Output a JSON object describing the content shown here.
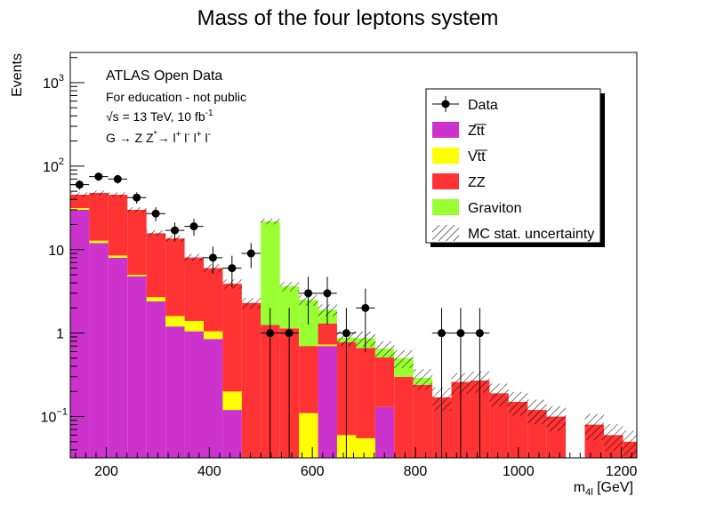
{
  "chart_data": {
    "type": "bar",
    "title": "Mass of the four leptons system",
    "xlabel": "m",
    "xlabel_sub": "4l",
    "xlabel_unit": " [GeV]",
    "ylabel": "Events",
    "y_scale": "log",
    "ylim": [
      0.032,
      2300
    ],
    "xlim": [
      130,
      1230
    ],
    "x_ticks": [
      200,
      400,
      600,
      800,
      1000,
      1200
    ],
    "y_tick_labels": [
      {
        "value": 1000,
        "base": "10",
        "exp": "3"
      },
      {
        "value": 100,
        "base": "10",
        "exp": "2"
      },
      {
        "value": 10,
        "text": "10"
      },
      {
        "value": 1,
        "text": "1"
      },
      {
        "value": 0.1,
        "base": "10",
        "exp": "−1"
      }
    ],
    "bin_edges": [
      130,
      167,
      204,
      241,
      278,
      315,
      352,
      389,
      426,
      463,
      500,
      537,
      574,
      611,
      648,
      685,
      722,
      759,
      796,
      833,
      870,
      907,
      944,
      981,
      1018,
      1055,
      1092,
      1129,
      1166,
      1203,
      1240
    ],
    "series": [
      {
        "name": "Zt̅t̅",
        "color": "#cc33cc",
        "values": [
          30,
          12,
          8,
          4.8,
          2.4,
          1.2,
          1.05,
          0.85,
          0.12,
          0,
          0,
          0,
          0,
          0.7,
          0,
          0,
          0.13,
          0,
          0,
          0,
          0,
          0,
          0,
          0,
          0,
          0,
          0,
          0,
          0,
          0
        ]
      },
      {
        "name": "Vt̅t̅",
        "color": "#ffff00",
        "values": [
          1.5,
          0.8,
          0.5,
          0.2,
          0.3,
          0.4,
          0.35,
          0.2,
          0.08,
          0,
          0,
          0,
          0.11,
          0.03,
          0.06,
          0.055,
          0,
          0,
          0,
          0,
          0,
          0,
          0,
          0,
          0,
          0,
          0,
          0,
          0,
          0
        ]
      },
      {
        "name": "ZZ",
        "color": "#ff3333",
        "values": [
          14,
          35,
          37,
          25,
          13,
          12,
          6.65,
          4.95,
          3.7,
          2.3,
          1.25,
          1.14,
          0.59,
          0.57,
          0.72,
          0.61,
          0.38,
          0.3,
          0.24,
          0.17,
          0.26,
          0.27,
          0.19,
          0.15,
          0.12,
          0.1,
          0,
          0.08,
          0.06,
          0.05
        ]
      },
      {
        "name": "Graviton",
        "color": "#99ff33",
        "values": [
          0,
          0,
          0,
          0,
          0,
          0,
          0,
          0,
          0,
          0,
          20.5,
          2.5,
          1.8,
          0.6,
          0.1,
          0.2,
          0.14,
          0.2,
          0.05,
          0,
          0,
          0,
          0,
          0,
          0,
          0,
          0,
          0,
          0,
          0
        ]
      }
    ],
    "data_points": {
      "name": "Data",
      "x": [
        148,
        185,
        222,
        259,
        296,
        333,
        370,
        407,
        444,
        481,
        518,
        555,
        592,
        629,
        666,
        703,
        851,
        888,
        925
      ],
      "y": [
        60,
        75,
        70,
        42,
        27,
        17,
        19,
        8,
        6,
        9,
        1,
        1,
        3,
        3,
        1,
        2,
        1,
        1,
        1
      ]
    },
    "uncertainty_label": "MC stat. uncertainty",
    "legend_placement": "top-right",
    "annotations": [
      "ATLAS Open Data",
      "For education - not public",
      "√s = 13 TeV, 10 fb",
      "G → Z Z",
      "→ l",
      " l",
      " l",
      " l"
    ],
    "annotation_sups": [
      "-1",
      "*",
      "+",
      "-",
      "+",
      "-"
    ]
  }
}
